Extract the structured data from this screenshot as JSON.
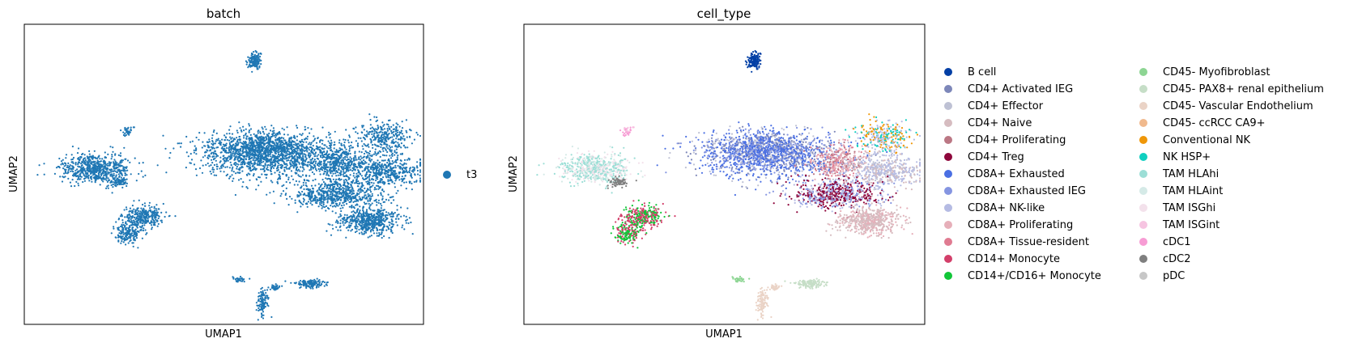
{
  "chart_data": [
    {
      "type": "scatter",
      "title": "batch",
      "xlabel": "UMAP1",
      "ylabel": "UMAP2",
      "grid": false,
      "legend": "right",
      "series": [
        {
          "name": "t3",
          "color": "#1f77b4"
        }
      ]
    },
    {
      "type": "scatter",
      "title": "cell_type",
      "xlabel": "UMAP1",
      "ylabel": "UMAP2",
      "grid": false,
      "legend": "right, two columns",
      "series": [
        {
          "name": "B cell",
          "color": "#023fa5"
        },
        {
          "name": "CD4+ Activated IEG",
          "color": "#7d87b9"
        },
        {
          "name": "CD4+ Effector",
          "color": "#bec1d4"
        },
        {
          "name": "CD4+ Naive",
          "color": "#d6bcc0"
        },
        {
          "name": "CD4+ Proliferating",
          "color": "#bb7784"
        },
        {
          "name": "CD4+ Treg",
          "color": "#8e063b"
        },
        {
          "name": "CD8A+ Exhausted",
          "color": "#4a6fe3"
        },
        {
          "name": "CD8A+ Exhausted IEG",
          "color": "#8595e1"
        },
        {
          "name": "CD8A+ NK-like",
          "color": "#b5bbe3"
        },
        {
          "name": "CD8A+ Proliferating",
          "color": "#e6afb9"
        },
        {
          "name": "CD8A+ Tissue-resident",
          "color": "#e07b91"
        },
        {
          "name": "CD14+ Monocyte",
          "color": "#d33f6a"
        },
        {
          "name": "CD14+/CD16+ Monocyte",
          "color": "#11c638"
        },
        {
          "name": "CD45- Myofibroblast",
          "color": "#8dd593"
        },
        {
          "name": "CD45- PAX8+ renal epithelium",
          "color": "#c6dec7"
        },
        {
          "name": "CD45- Vascular Endothelium",
          "color": "#ead3c6"
        },
        {
          "name": "CD45- ccRCC CA9+",
          "color": "#f0b98d"
        },
        {
          "name": "Conventional NK",
          "color": "#ef9708"
        },
        {
          "name": "NK HSP+",
          "color": "#0fcfc0"
        },
        {
          "name": "TAM HLAhi",
          "color": "#9cded6"
        },
        {
          "name": "TAM HLAint",
          "color": "#d5eae7"
        },
        {
          "name": "TAM ISGhi",
          "color": "#f3e1eb"
        },
        {
          "name": "TAM ISGint",
          "color": "#f6c4e1"
        },
        {
          "name": "cDC1",
          "color": "#f79cd4"
        },
        {
          "name": "cDC2",
          "color": "#7f7f7f"
        },
        {
          "name": "pDC",
          "color": "#c7c7c7"
        }
      ]
    }
  ]
}
